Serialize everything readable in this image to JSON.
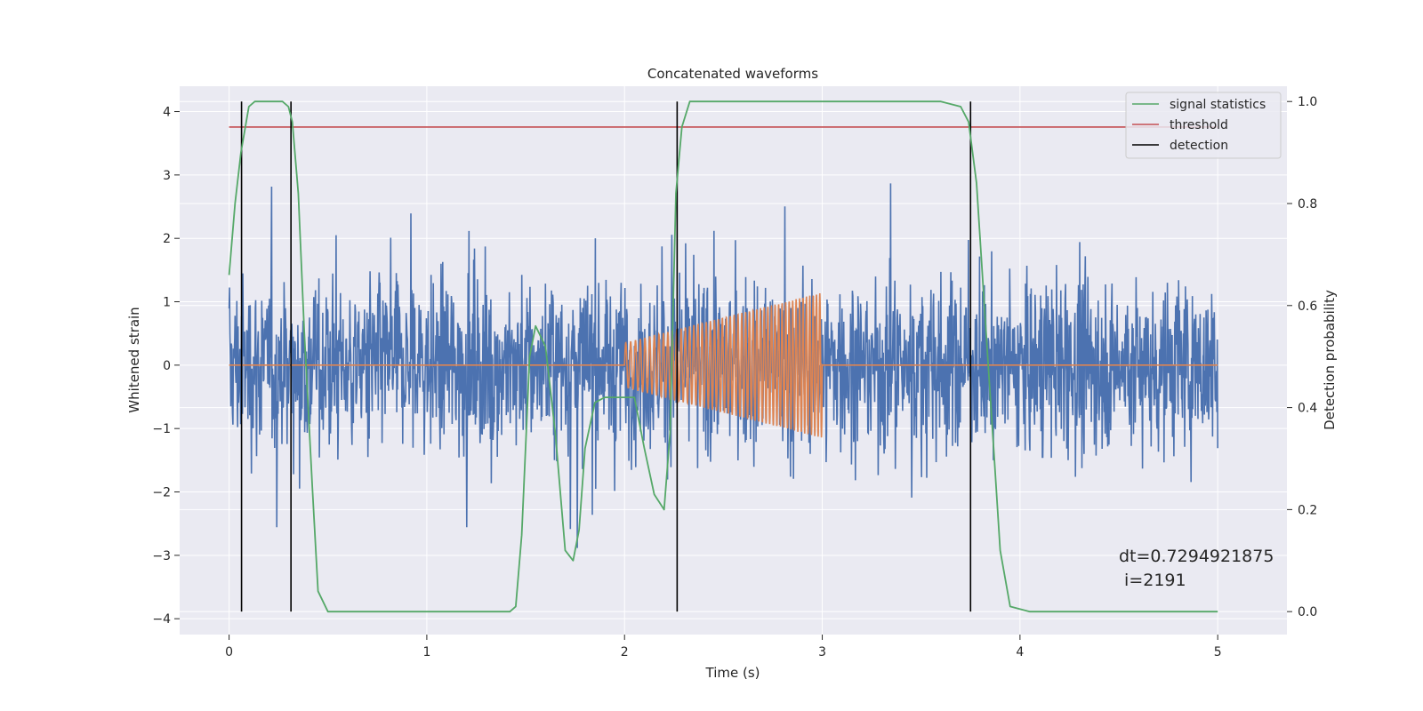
{
  "chart_data": {
    "type": "line",
    "title": "Concatenated waveforms",
    "xlabel": "Time (s)",
    "ylabel": "Whitened strain",
    "y2label": "Detection probability",
    "xlim": [
      -0.25,
      5.35
    ],
    "ylim": [
      -4.25,
      4.4
    ],
    "y2lim": [
      -0.045,
      1.03
    ],
    "xticks": [
      0,
      1,
      2,
      3,
      4,
      5
    ],
    "yticks": [
      -4,
      -3,
      -2,
      -1,
      0,
      1,
      2,
      3,
      4
    ],
    "y2ticks": [
      0.0,
      0.2,
      0.4,
      0.6,
      0.8,
      1.0
    ],
    "xtick_labels": [
      "0",
      "1",
      "2",
      "3",
      "4",
      "5"
    ],
    "ytick_labels": [
      "−4",
      "−3",
      "−2",
      "−1",
      "0",
      "1",
      "2",
      "3",
      "4"
    ],
    "y2tick_labels": [
      "0.0",
      "0.2",
      "0.4",
      "0.6",
      "0.8",
      "1.0"
    ],
    "grid": true,
    "legend_position": "top-right",
    "legend": [
      "signal statistics",
      "threshold",
      "detection"
    ],
    "colors": {
      "strain": "#4c72b0",
      "injected": "#dd8452",
      "signal_statistics": "#55a868",
      "threshold": "#c44e52",
      "detection": "#000000",
      "background": "#eaeaf2",
      "grid": "#ffffff"
    },
    "series": [
      {
        "name": "",
        "axis": "left",
        "description_kind": "noise",
        "time_range": [
          0,
          5
        ],
        "amplitude_envelope": [
          -3.75,
          4.0
        ]
      },
      {
        "name": "",
        "axis": "left",
        "description_kind": "chirp",
        "x": [
          0,
          2.0,
          2.0,
          3.0,
          3.0,
          5.0
        ],
        "envelope_start": 0.35,
        "envelope_end": 1.15
      },
      {
        "name": "signal statistics",
        "axis": "right",
        "x": [
          0.0,
          0.03,
          0.06,
          0.1,
          0.13,
          0.2,
          0.27,
          0.3,
          0.32,
          0.35,
          0.38,
          0.42,
          0.45,
          0.5,
          1.42,
          1.45,
          1.48,
          1.52,
          1.55,
          1.6,
          1.65,
          1.7,
          1.74,
          1.77,
          1.8,
          1.85,
          1.9,
          1.95,
          2.0,
          2.05,
          2.1,
          2.15,
          2.2,
          2.23,
          2.26,
          2.29,
          2.33,
          2.4,
          3.6,
          3.7,
          3.74,
          3.78,
          3.82,
          3.87,
          3.9,
          3.95,
          4.05,
          5.0
        ],
        "y": [
          0.66,
          0.8,
          0.9,
          0.99,
          1.0,
          1.0,
          1.0,
          0.99,
          0.96,
          0.82,
          0.55,
          0.25,
          0.04,
          0.0,
          0.0,
          0.01,
          0.15,
          0.5,
          0.56,
          0.52,
          0.35,
          0.12,
          0.1,
          0.16,
          0.32,
          0.41,
          0.42,
          0.42,
          0.42,
          0.42,
          0.32,
          0.23,
          0.2,
          0.35,
          0.82,
          0.95,
          1.0,
          1.0,
          1.0,
          0.99,
          0.96,
          0.84,
          0.6,
          0.3,
          0.12,
          0.01,
          0.0,
          0.0
        ]
      },
      {
        "name": "threshold",
        "axis": "right",
        "x": [
          0,
          5
        ],
        "y": [
          0.95,
          0.95
        ]
      },
      {
        "name": "detection",
        "axis": "right",
        "x": [
          0.063,
          0.313,
          2.266,
          3.75
        ],
        "y_range": [
          0.0,
          1.0
        ]
      }
    ],
    "annotation": "dt=0.7294921875\n i=2191",
    "annotation_lines": [
      "dt=0.7294921875",
      " i=2191"
    ]
  }
}
